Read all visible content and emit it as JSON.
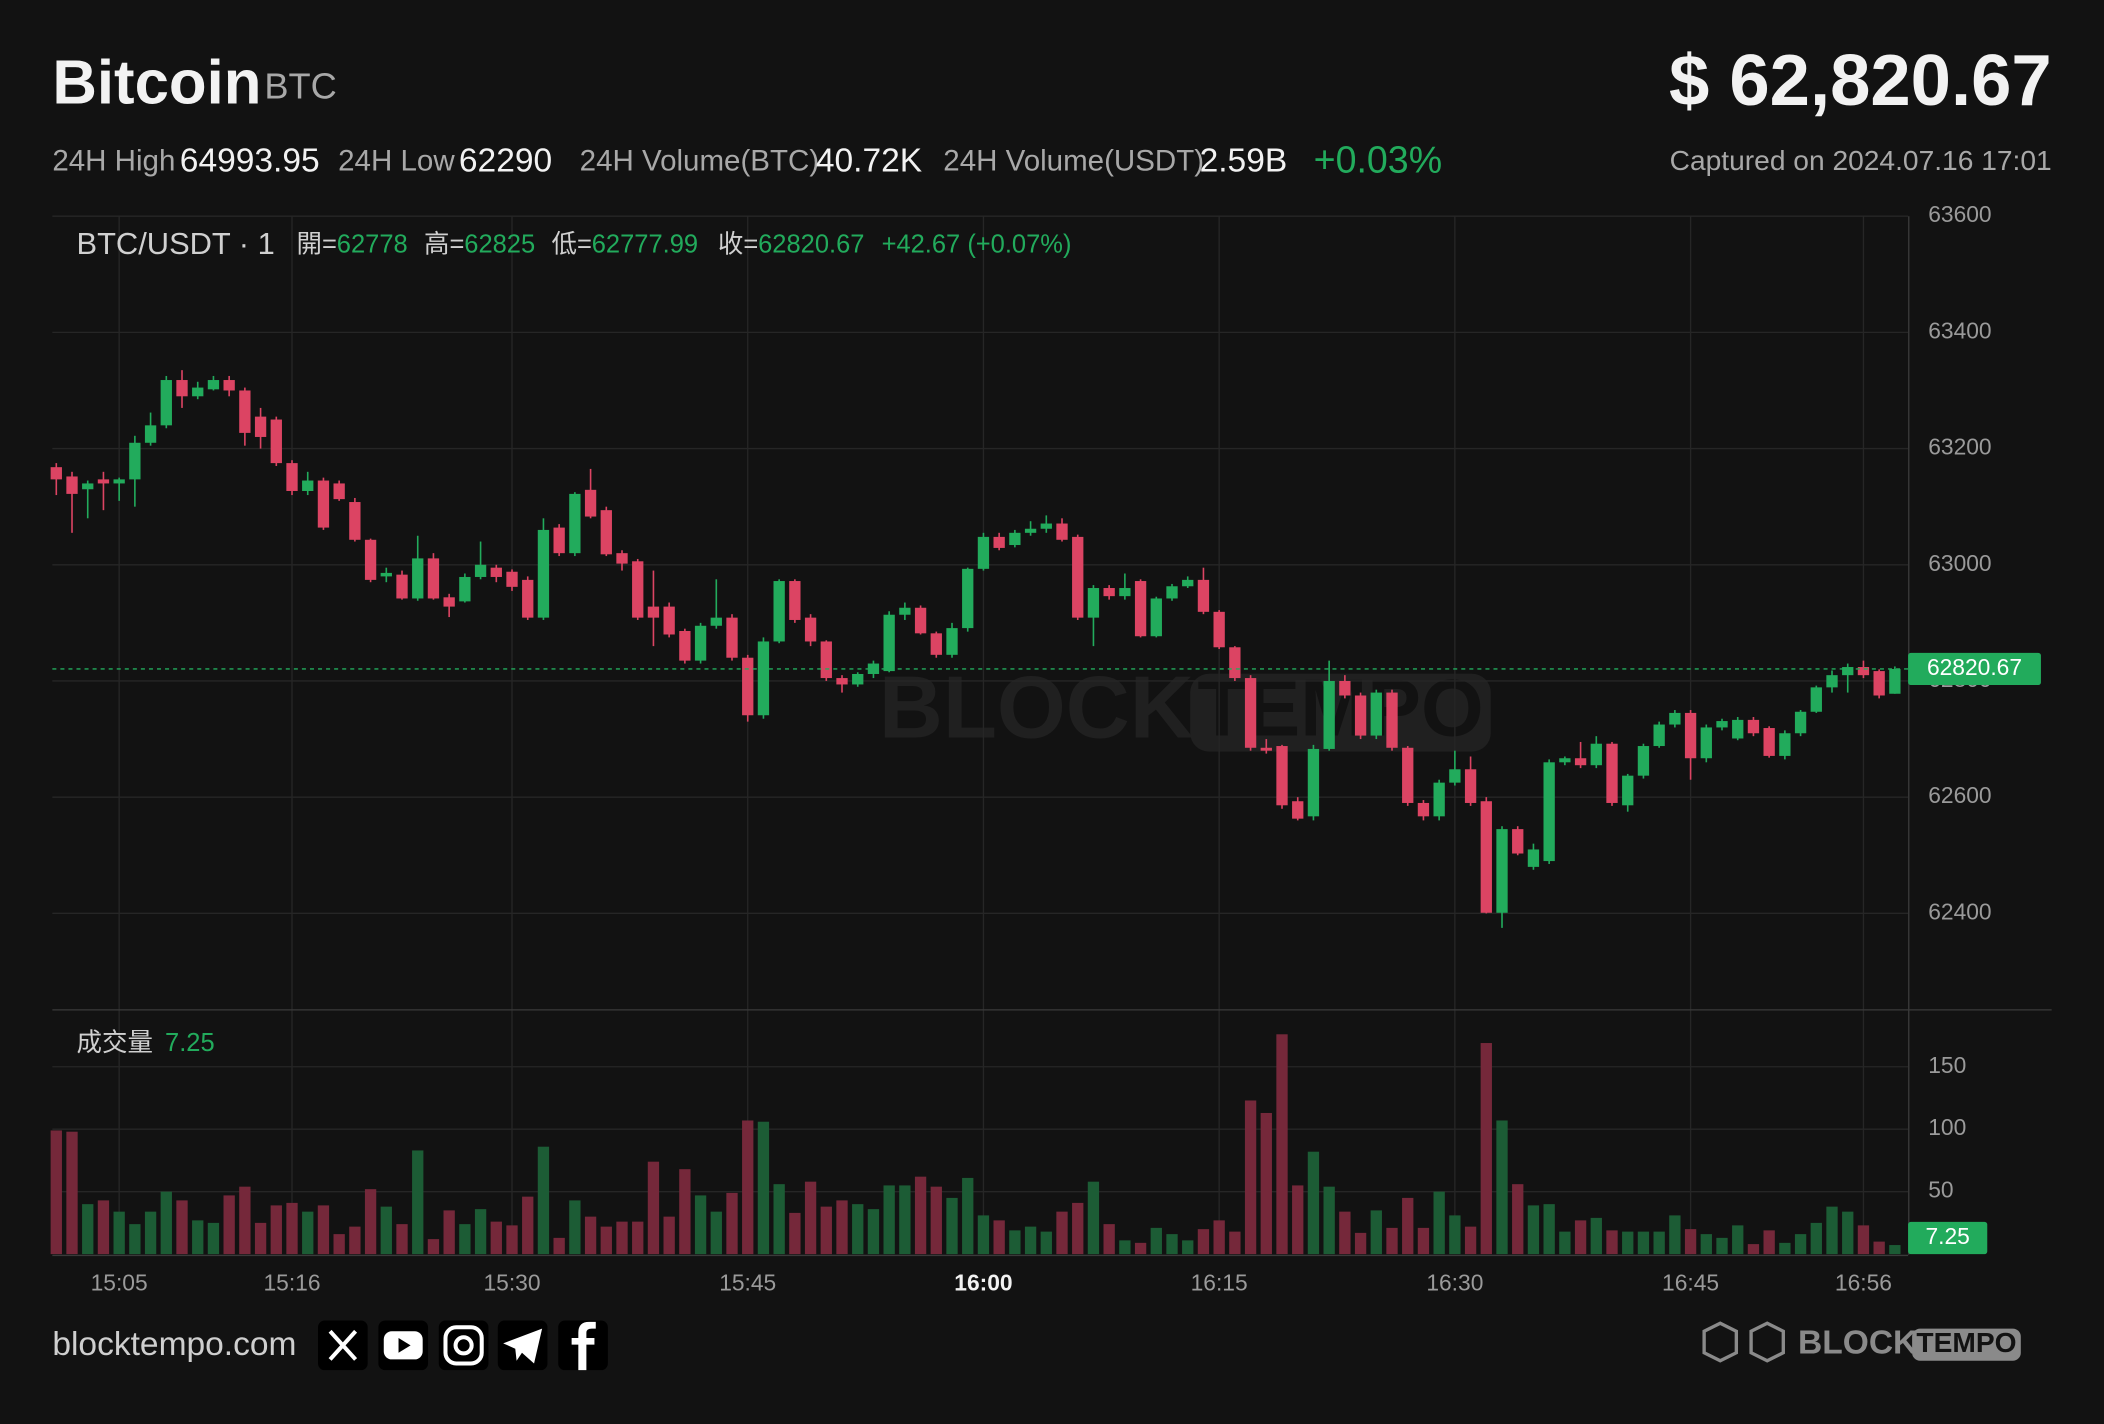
{
  "header": {
    "title": "Bitcoin",
    "symbol": "BTC",
    "price": "$ 62,820.67",
    "stats": [
      {
        "label": "24H High",
        "value": "64993.95"
      },
      {
        "label": "24H Low",
        "value": "62290"
      },
      {
        "label": "24H Volume(BTC)",
        "value": "40.72K"
      },
      {
        "label": "24H Volume(USDT)",
        "value": "2.59B"
      }
    ],
    "change": "+0.03%",
    "captured": "Captured on 2024.07.16 17:01"
  },
  "chart_data": {
    "type": "candlestick",
    "symbol_label": "BTC/USDT · 1",
    "ohlc_labels": [
      "開=",
      "高=",
      "低=",
      "收="
    ],
    "change_label": "+42.67 (+0.07%)",
    "volume_label": "成交量",
    "up_color": "#22ab5c",
    "down_color": "#dc4463",
    "up_volume_color": "#1c5c35",
    "down_volume_color": "#75283a",
    "categories": [
      null,
      null,
      null,
      null,
      "15:05",
      null,
      null,
      null,
      null,
      null,
      null,
      null,
      null,
      null,
      null,
      "15:16",
      null,
      null,
      null,
      null,
      null,
      null,
      null,
      null,
      null,
      null,
      null,
      null,
      null,
      "15:30",
      null,
      null,
      null,
      null,
      null,
      null,
      null,
      null,
      null,
      null,
      null,
      null,
      null,
      null,
      "15:45",
      null,
      null,
      null,
      null,
      null,
      null,
      null,
      null,
      null,
      null,
      null,
      null,
      null,
      null,
      "16:00",
      null,
      null,
      null,
      null,
      null,
      null,
      null,
      null,
      null,
      null,
      null,
      null,
      null,
      null,
      "16:15",
      null,
      null,
      null,
      null,
      null,
      null,
      null,
      null,
      null,
      null,
      null,
      null,
      null,
      null,
      "16:30",
      null,
      null,
      null,
      null,
      null,
      null,
      null,
      null,
      null,
      null,
      null,
      null,
      null,
      null,
      "16:45",
      null,
      null,
      null,
      null,
      null,
      null,
      null,
      null,
      null,
      null,
      "16:56",
      null,
      null
    ],
    "open": [
      63168,
      63152,
      63130,
      63147,
      63140,
      63147,
      63210,
      63240,
      63318,
      63290,
      63302,
      63318,
      63300,
      63255,
      63250,
      63175,
      63127,
      63145,
      63140,
      63108,
      63043,
      62980,
      62983,
      62942,
      63011,
      62944,
      62937,
      62979,
      62995,
      62988,
      62974,
      62909,
      63064,
      63020,
      63129,
      63094,
      63020,
      63006,
      62928,
      62928,
      62886,
      62835,
      62895,
      62909,
      62840,
      62741,
      62868,
      62972,
      62909,
      62868,
      62805,
      62794,
      62812,
      62817,
      62914,
      62926,
      62882,
      62845,
      62891,
      62993,
      63048,
      63034,
      63055,
      63062,
      63071,
      63048,
      62909,
      62960,
      62946,
      62972,
      62877,
      62942,
      62963,
      62974,
      62919,
      62858,
      62805,
      62685,
      62688,
      62593,
      62567,
      62683,
      62800,
      62775,
      62706,
      62780,
      62685,
      62590,
      62567,
      62625,
      62648,
      62593,
      62401,
      62545,
      62480,
      62490,
      62660,
      62667,
      62655,
      62692,
      62586,
      62637,
      62688,
      62725,
      62745,
      62667,
      62720,
      62701,
      62733,
      62719,
      62671,
      62710,
      62747,
      62789,
      62810,
      62824,
      62817,
      62778
    ],
    "high": [
      63175,
      63160,
      63145,
      63160,
      63150,
      63222,
      63262,
      63325,
      63335,
      63315,
      63325,
      63325,
      63305,
      63270,
      63255,
      63180,
      63160,
      63150,
      63145,
      63115,
      63045,
      62995,
      62990,
      63050,
      63020,
      62950,
      62985,
      63040,
      63000,
      62992,
      62980,
      63080,
      63070,
      63125,
      63165,
      63100,
      63025,
      63010,
      62990,
      62935,
      62890,
      62900,
      62975,
      62915,
      62845,
      62875,
      62975,
      62975,
      62915,
      62870,
      62810,
      62815,
      62835,
      62920,
      62935,
      62930,
      62885,
      62900,
      62995,
      63055,
      63055,
      63060,
      63075,
      63085,
      63080,
      63052,
      62965,
      62965,
      62985,
      62975,
      62945,
      62967,
      62980,
      62995,
      62922,
      62860,
      62810,
      62700,
      62690,
      62600,
      62690,
      62835,
      62810,
      62780,
      62785,
      62785,
      62688,
      62595,
      62630,
      62680,
      62670,
      62600,
      62550,
      62550,
      62520,
      62665,
      62670,
      62695,
      62705,
      62695,
      62640,
      62692,
      62730,
      62750,
      62750,
      62725,
      62735,
      62738,
      62738,
      62722,
      62715,
      62750,
      62792,
      62818,
      62830,
      62835,
      62820,
      62825
    ],
    "low": [
      63120,
      63055,
      63080,
      63094,
      63110,
      63100,
      63205,
      63235,
      63270,
      63285,
      63300,
      63290,
      63205,
      63200,
      63170,
      63120,
      63120,
      63060,
      63110,
      63040,
      62970,
      62970,
      62940,
      62938,
      62940,
      62910,
      62935,
      62975,
      62970,
      62955,
      62905,
      62905,
      63015,
      63015,
      63080,
      63015,
      62990,
      62905,
      62860,
      62875,
      62830,
      62830,
      62890,
      62835,
      62730,
      62735,
      62865,
      62900,
      62860,
      62800,
      62780,
      62790,
      62805,
      62815,
      62905,
      62880,
      62840,
      62840,
      62885,
      62990,
      63025,
      63030,
      63050,
      63055,
      63040,
      62905,
      62860,
      62940,
      62940,
      62875,
      62875,
      62938,
      62960,
      62915,
      62855,
      62800,
      62680,
      62675,
      62580,
      62560,
      62560,
      62680,
      62770,
      62700,
      62700,
      62680,
      62585,
      62560,
      62560,
      62620,
      62585,
      62400,
      62375,
      62500,
      62475,
      62485,
      62655,
      62650,
      62650,
      62585,
      62575,
      62632,
      62685,
      62720,
      62630,
      62660,
      62715,
      62698,
      62705,
      62668,
      62665,
      62705,
      62745,
      62780,
      62780,
      62805,
      62770,
      62777.99
    ],
    "close": [
      63147,
      63122,
      63140,
      63140,
      63147,
      63210,
      63240,
      63318,
      63290,
      63305,
      63318,
      63300,
      63227,
      63220,
      63175,
      63127,
      63145,
      63064,
      63113,
      63043,
      62974,
      62986,
      62942,
      63011,
      62942,
      62928,
      62979,
      63000,
      62979,
      62962,
      62909,
      63060,
      63020,
      63122,
      63083,
      63018,
      63002,
      62909,
      62909,
      62880,
      62835,
      62895,
      62909,
      62840,
      62741,
      62868,
      62972,
      62905,
      62868,
      62805,
      62794,
      62812,
      62830,
      62914,
      62926,
      62882,
      62845,
      62891,
      62993,
      63048,
      63029,
      63055,
      63062,
      63071,
      63043,
      62909,
      62960,
      62946,
      62960,
      62877,
      62942,
      62963,
      62974,
      62919,
      62858,
      62805,
      62685,
      62680,
      62586,
      62563,
      62683,
      62800,
      62775,
      62706,
      62780,
      62685,
      62590,
      62567,
      62625,
      62648,
      62590,
      62401,
      62545,
      62503,
      62510,
      62660,
      62667,
      62655,
      62692,
      62590,
      62637,
      62688,
      62725,
      62745,
      62667,
      62720,
      62731,
      62733,
      62710,
      62671,
      62710,
      62747,
      62789,
      62810,
      62824,
      62810,
      62775,
      62820.67
    ],
    "volume": [
      99,
      98,
      40,
      43,
      34,
      24,
      34,
      50,
      43,
      27,
      25,
      47,
      54,
      25,
      39,
      41,
      34,
      39,
      16,
      22,
      52,
      38,
      24,
      83,
      12,
      35,
      24,
      36,
      26,
      23,
      46,
      86,
      13,
      43,
      30,
      22,
      26,
      26,
      74,
      30,
      68,
      47,
      34,
      49,
      107,
      106,
      56,
      33,
      58,
      38,
      43,
      40,
      36,
      55,
      55,
      62,
      54,
      45,
      61,
      31,
      27,
      19,
      22,
      18,
      34,
      41,
      58,
      24,
      11,
      9,
      21,
      16,
      11,
      20,
      27,
      18,
      123,
      113,
      176,
      55,
      82,
      54,
      34,
      17,
      35,
      21,
      45,
      21,
      50,
      31,
      22,
      169,
      107,
      56,
      39,
      40,
      18,
      27,
      29,
      19,
      18,
      18,
      18,
      31,
      20,
      16,
      13,
      23,
      8,
      19,
      9,
      16,
      25,
      38,
      34,
      23,
      10,
      7.25
    ],
    "ylim": [
      62235,
      63600
    ],
    "yticks": [
      62400,
      62600,
      62800,
      63000,
      63200,
      63400,
      63600
    ],
    "vlim": [
      0,
      195
    ],
    "vticks": [
      50,
      100,
      150
    ],
    "grid": true
  },
  "footer": {
    "site": "blocktempo.com",
    "logo": [
      "BLOCK",
      "TEMPO"
    ]
  }
}
